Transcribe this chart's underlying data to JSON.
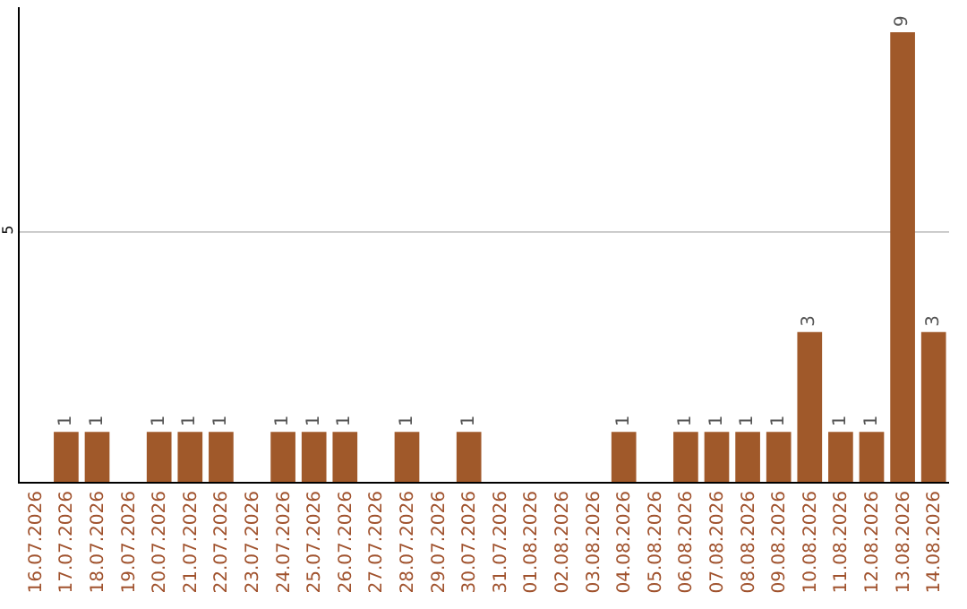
{
  "chart_data": {
    "type": "bar",
    "categories": [
      "16.07.2026",
      "17.07.2026",
      "18.07.2026",
      "19.07.2026",
      "20.07.2026",
      "21.07.2026",
      "22.07.2026",
      "23.07.2026",
      "24.07.2026",
      "25.07.2026",
      "26.07.2026",
      "27.07.2026",
      "28.07.2026",
      "29.07.2026",
      "30.07.2026",
      "31.07.2026",
      "01.08.2026",
      "02.08.2026",
      "03.08.2026",
      "04.08.2026",
      "05.08.2026",
      "06.08.2026",
      "07.08.2026",
      "08.08.2026",
      "09.08.2026",
      "10.08.2026",
      "11.08.2026",
      "12.08.2026",
      "13.08.2026",
      "14.08.2026"
    ],
    "series": [
      {
        "color": "#a0592a",
        "values": [
          0,
          1,
          1,
          0,
          1,
          1,
          1,
          0,
          1,
          1,
          1,
          0,
          1,
          0,
          1,
          0,
          0,
          0,
          0,
          1,
          0,
          1,
          1,
          1,
          1,
          3,
          1,
          1,
          9,
          3
        ],
        "value_labels": [
          null,
          "1",
          "1",
          null,
          "1",
          "1",
          "1",
          null,
          "1",
          "1",
          "1",
          null,
          "1",
          null,
          "1",
          null,
          null,
          null,
          null,
          "1",
          null,
          "1",
          "1",
          "1",
          "1",
          "3",
          "1",
          "1",
          "9",
          "3"
        ]
      }
    ],
    "ylim": [
      0,
      9.5
    ],
    "yticks": [
      5
    ],
    "grid": "y",
    "legend": false
  }
}
